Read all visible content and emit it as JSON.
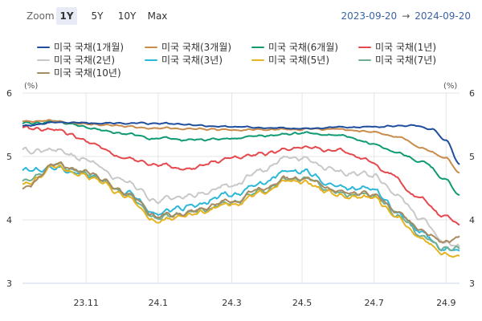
{
  "toolbar": {
    "zoom_label": "Zoom",
    "buttons": [
      "1Y",
      "5Y",
      "10Y",
      "Max"
    ],
    "active": "1Y",
    "range_start": "2023-09-20",
    "range_arrow": "→",
    "range_end": "2024-09-20"
  },
  "chart_data": {
    "type": "line",
    "title": "",
    "y_unit_left": "(%)",
    "y_unit_right": "(%)",
    "ylim": [
      3,
      6
    ],
    "y_ticks": [
      "3",
      "4",
      "5",
      "6"
    ],
    "x_ticks": [
      "23.11",
      "24.1",
      "24.3",
      "24.5",
      "24.7",
      "24.9"
    ],
    "x_tick_index": [
      38,
      81,
      125,
      167,
      210,
      253
    ],
    "n_points": 262,
    "grid": true,
    "series": [
      {
        "name": "미국 국채(1개월)",
        "color": "#1f4e9c",
        "anchors": [
          [
            0,
            5.48
          ],
          [
            20,
            5.54
          ],
          [
            40,
            5.53
          ],
          [
            81,
            5.52
          ],
          [
            125,
            5.47
          ],
          [
            150,
            5.45
          ],
          [
            167,
            5.44
          ],
          [
            190,
            5.46
          ],
          [
            210,
            5.47
          ],
          [
            233,
            5.49
          ],
          [
            245,
            5.43
          ],
          [
            253,
            5.25
          ],
          [
            261,
            4.87
          ]
        ]
      },
      {
        "name": "미국 국채(3개월)",
        "color": "#c98c4d",
        "anchors": [
          [
            0,
            5.55
          ],
          [
            15,
            5.56
          ],
          [
            40,
            5.51
          ],
          [
            81,
            5.45
          ],
          [
            125,
            5.42
          ],
          [
            167,
            5.43
          ],
          [
            190,
            5.43
          ],
          [
            210,
            5.38
          ],
          [
            225,
            5.3
          ],
          [
            240,
            5.12
          ],
          [
            253,
            4.97
          ],
          [
            261,
            4.73
          ]
        ]
      },
      {
        "name": "미국 국채(6개월)",
        "color": "#0f9a73",
        "anchors": [
          [
            0,
            5.52
          ],
          [
            20,
            5.55
          ],
          [
            40,
            5.45
          ],
          [
            60,
            5.36
          ],
          [
            81,
            5.28
          ],
          [
            100,
            5.26
          ],
          [
            125,
            5.28
          ],
          [
            145,
            5.33
          ],
          [
            167,
            5.37
          ],
          [
            190,
            5.33
          ],
          [
            210,
            5.2
          ],
          [
            225,
            5.05
          ],
          [
            240,
            4.9
          ],
          [
            253,
            4.63
          ],
          [
            261,
            4.39
          ]
        ]
      },
      {
        "name": "미국 국채(1년)",
        "color": "#e5484d",
        "anchors": [
          [
            0,
            5.45
          ],
          [
            20,
            5.42
          ],
          [
            40,
            5.23
          ],
          [
            60,
            4.98
          ],
          [
            81,
            4.87
          ],
          [
            100,
            4.8
          ],
          [
            115,
            4.92
          ],
          [
            125,
            4.98
          ],
          [
            145,
            5.05
          ],
          [
            167,
            5.15
          ],
          [
            190,
            5.09
          ],
          [
            205,
            4.95
          ],
          [
            220,
            4.72
          ],
          [
            235,
            4.38
          ],
          [
            253,
            4.05
          ],
          [
            261,
            3.92
          ]
        ]
      },
      {
        "name": "미국 국채(2년)",
        "color": "#c8c8c8",
        "anchors": [
          [
            0,
            5.08
          ],
          [
            20,
            5.1
          ],
          [
            40,
            4.92
          ],
          [
            60,
            4.62
          ],
          [
            81,
            4.3
          ],
          [
            100,
            4.38
          ],
          [
            125,
            4.55
          ],
          [
            145,
            4.8
          ],
          [
            160,
            5.0
          ],
          [
            167,
            4.97
          ],
          [
            190,
            4.75
          ],
          [
            210,
            4.7
          ],
          [
            225,
            4.35
          ],
          [
            240,
            3.98
          ],
          [
            253,
            3.62
          ],
          [
            261,
            3.58
          ]
        ]
      },
      {
        "name": "미국 국채(3년)",
        "color": "#2db7d9",
        "anchors": [
          [
            0,
            4.78
          ],
          [
            20,
            4.83
          ],
          [
            40,
            4.7
          ],
          [
            60,
            4.45
          ],
          [
            81,
            4.1
          ],
          [
            100,
            4.22
          ],
          [
            125,
            4.4
          ],
          [
            145,
            4.6
          ],
          [
            160,
            4.8
          ],
          [
            167,
            4.76
          ],
          [
            190,
            4.52
          ],
          [
            210,
            4.48
          ],
          [
            225,
            4.1
          ],
          [
            240,
            3.77
          ],
          [
            253,
            3.52
          ],
          [
            261,
            3.48
          ]
        ]
      },
      {
        "name": "미국 국채(5년)",
        "color": "#e6b320",
        "anchors": [
          [
            0,
            4.55
          ],
          [
            20,
            4.82
          ],
          [
            40,
            4.68
          ],
          [
            60,
            4.4
          ],
          [
            81,
            3.98
          ],
          [
            100,
            4.08
          ],
          [
            125,
            4.25
          ],
          [
            145,
            4.45
          ],
          [
            160,
            4.63
          ],
          [
            167,
            4.6
          ],
          [
            190,
            4.38
          ],
          [
            210,
            4.35
          ],
          [
            225,
            4.0
          ],
          [
            240,
            3.68
          ],
          [
            253,
            3.45
          ],
          [
            261,
            3.43
          ]
        ]
      },
      {
        "name": "미국 국채(7년)",
        "color": "#6fae92",
        "anchors": [
          [
            0,
            4.58
          ],
          [
            20,
            4.86
          ],
          [
            40,
            4.72
          ],
          [
            60,
            4.44
          ],
          [
            81,
            4.02
          ],
          [
            100,
            4.12
          ],
          [
            125,
            4.28
          ],
          [
            145,
            4.48
          ],
          [
            160,
            4.66
          ],
          [
            167,
            4.64
          ],
          [
            190,
            4.42
          ],
          [
            210,
            4.38
          ],
          [
            225,
            4.05
          ],
          [
            240,
            3.72
          ],
          [
            253,
            3.55
          ],
          [
            261,
            3.55
          ]
        ]
      },
      {
        "name": "미국 국채(10년)",
        "color": "#a88a60",
        "anchors": [
          [
            0,
            4.48
          ],
          [
            20,
            4.88
          ],
          [
            40,
            4.75
          ],
          [
            60,
            4.45
          ],
          [
            81,
            4.05
          ],
          [
            100,
            4.13
          ],
          [
            125,
            4.3
          ],
          [
            145,
            4.5
          ],
          [
            160,
            4.68
          ],
          [
            167,
            4.66
          ],
          [
            190,
            4.45
          ],
          [
            210,
            4.4
          ],
          [
            225,
            4.1
          ],
          [
            240,
            3.8
          ],
          [
            253,
            3.65
          ],
          [
            261,
            3.73
          ]
        ]
      }
    ]
  }
}
